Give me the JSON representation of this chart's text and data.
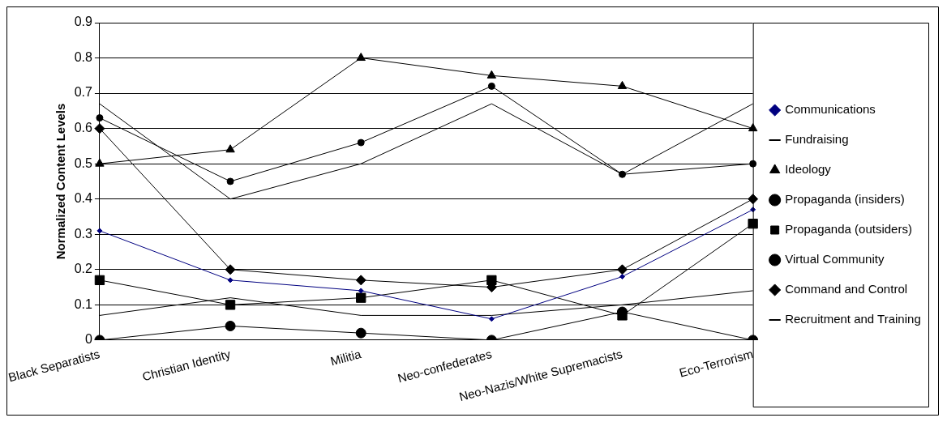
{
  "chart_data": {
    "type": "line",
    "ylabel": "Normalized Content Levels",
    "categories": [
      "Black Separatists",
      "Christian Identity",
      "Militia",
      "Neo-confederates",
      "Neo-Nazis/White Supremacists",
      "Eco-Terrorism"
    ],
    "series": [
      {
        "name": "Communications",
        "color": "#000080",
        "marker": "diamond",
        "values": [
          0.31,
          0.17,
          0.14,
          0.06,
          0.18,
          0.37
        ]
      },
      {
        "name": "Fundraising",
        "color": "#000000",
        "marker": "none",
        "values": [
          0.07,
          0.12,
          0.07,
          0.07,
          0.1,
          0.14
        ]
      },
      {
        "name": "Ideology",
        "color": "#000000",
        "marker": "triangle",
        "values": [
          0.5,
          0.54,
          0.8,
          0.75,
          0.72,
          0.6
        ]
      },
      {
        "name": "Propaganda (insiders)",
        "color": "#000000",
        "marker": "circle",
        "values": [
          0.63,
          0.45,
          0.56,
          0.72,
          0.47,
          0.5
        ]
      },
      {
        "name": "Propaganda (outsiders)",
        "color": "#000000",
        "marker": "square",
        "values": [
          0.17,
          0.1,
          0.12,
          0.17,
          0.07,
          0.33
        ]
      },
      {
        "name": "Virtual Community",
        "color": "#000000",
        "marker": "circle",
        "values": [
          0,
          0.04,
          0.02,
          0,
          0.08,
          0
        ]
      },
      {
        "name": "Command and Control",
        "color": "#000000",
        "marker": "diamond",
        "values": [
          0.6,
          0.2,
          0.17,
          0.15,
          0.2,
          0.4
        ]
      },
      {
        "name": "Recruitment and Training",
        "color": "#000000",
        "marker": "none",
        "values": [
          0.67,
          0.4,
          0.5,
          0.67,
          0.47,
          0.67
        ]
      }
    ],
    "ylim": [
      0,
      0.9
    ],
    "yticks": [
      0,
      0.1,
      0.2,
      0.3,
      0.4,
      0.5,
      0.6,
      0.7,
      0.8,
      0.9
    ],
    "grid": "y",
    "legend": "right",
    "line_style": "solid"
  }
}
